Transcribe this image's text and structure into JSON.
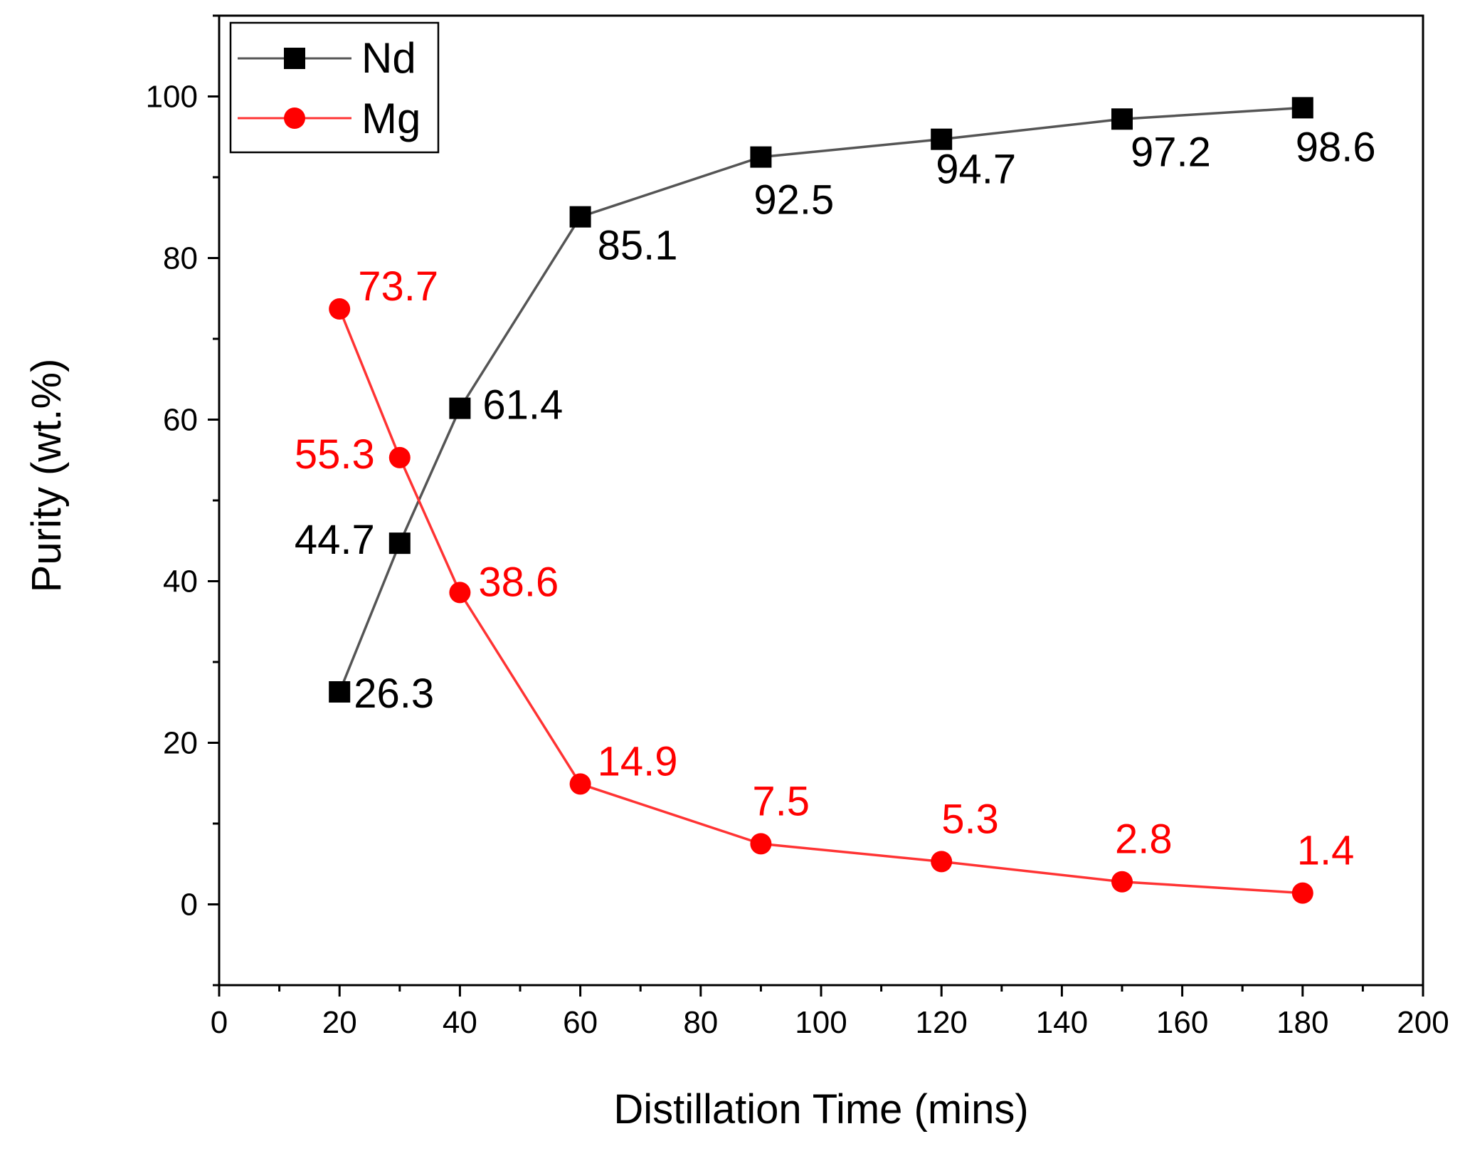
{
  "chart_data": {
    "type": "line",
    "title": "",
    "xlabel": "Distillation Time (mins)",
    "ylabel": "Purity (wt.%)",
    "xlim": [
      0,
      200
    ],
    "ylim": [
      -10,
      110
    ],
    "x_ticks": [
      0,
      20,
      40,
      60,
      80,
      100,
      120,
      140,
      160,
      180,
      200
    ],
    "y_ticks": [
      0,
      20,
      40,
      60,
      80,
      100
    ],
    "x_tick_labels": [
      "0",
      "20",
      "40",
      "60",
      "80",
      "100",
      "120",
      "140",
      "160",
      "180",
      "200"
    ],
    "y_tick_labels": [
      "0",
      "20",
      "40",
      "60",
      "80",
      "100"
    ],
    "grid": false,
    "legend_position": "top-left",
    "x": [
      20,
      30,
      40,
      60,
      90,
      120,
      150,
      180
    ],
    "series": [
      {
        "name": "Nd",
        "marker": "square",
        "color": "#000000",
        "line_color": "#555555",
        "values": [
          26.3,
          44.7,
          61.4,
          85.1,
          92.5,
          94.7,
          97.2,
          98.6
        ],
        "labels": [
          "26.3",
          "44.7",
          "61.4",
          "85.1",
          "92.5",
          "94.7",
          "97.2",
          "98.6"
        ]
      },
      {
        "name": "Mg",
        "marker": "circle",
        "color": "#ff0000",
        "line_color": "#ff3333",
        "values": [
          73.7,
          55.3,
          38.6,
          14.9,
          7.5,
          5.3,
          2.8,
          1.4
        ],
        "labels": [
          "73.7",
          "55.3",
          "38.6",
          "14.9",
          "7.5",
          "5.3",
          "2.8",
          "1.4"
        ]
      }
    ]
  }
}
